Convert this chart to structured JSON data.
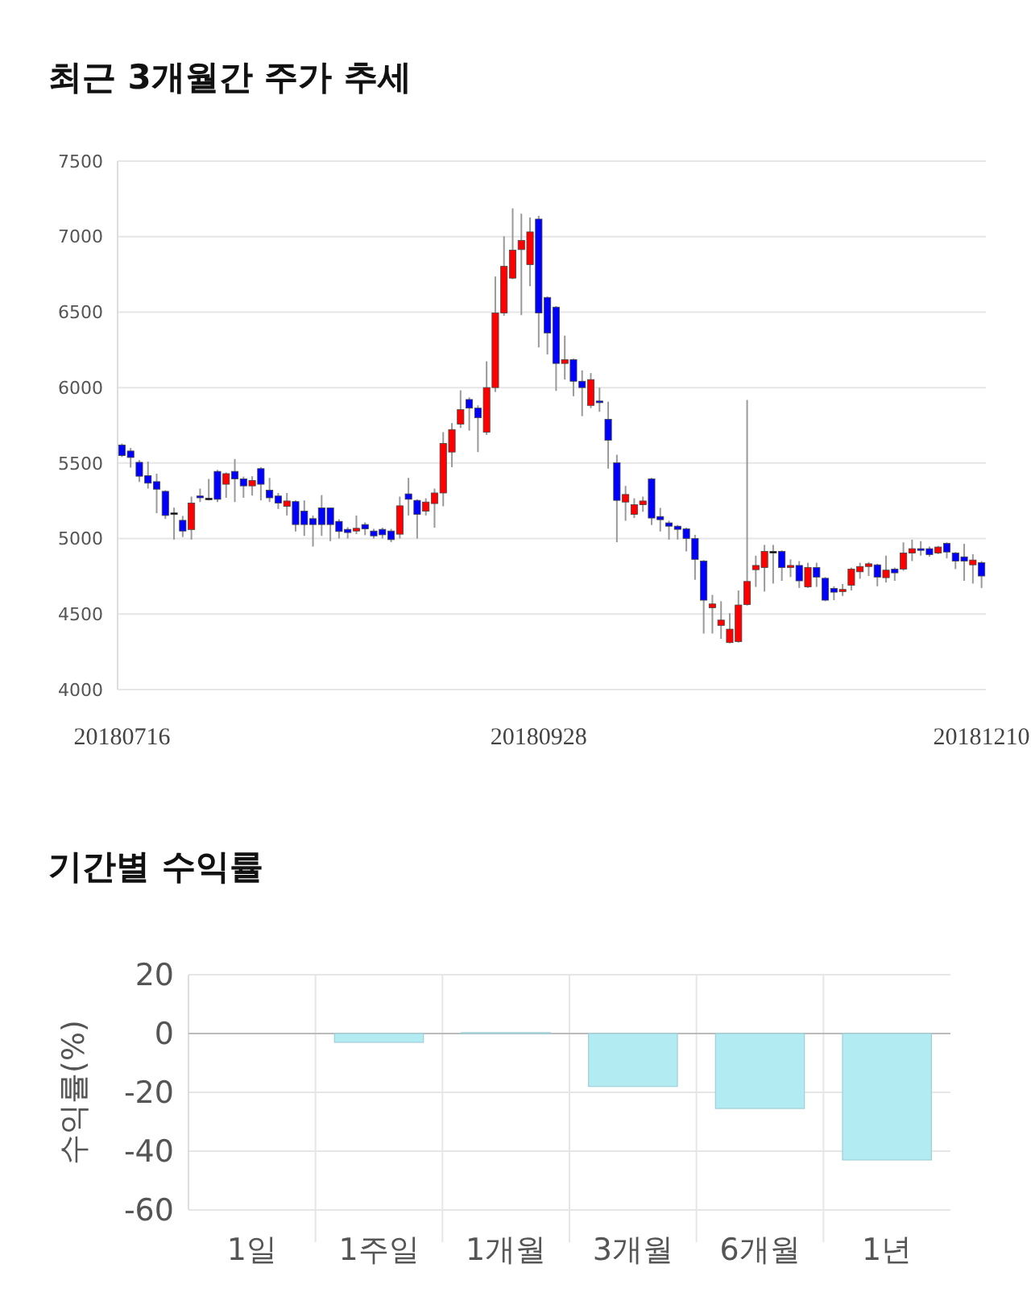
{
  "chart_data": [
    {
      "type": "candlestick",
      "title": "최근 3개월간 주가 추세",
      "categories": [
        "20180716",
        null,
        null,
        null,
        null,
        null,
        null,
        null,
        null,
        null,
        null,
        null,
        null,
        null,
        null,
        null,
        null,
        null,
        null,
        null,
        null,
        null,
        null,
        null,
        null,
        null,
        null,
        null,
        null,
        null,
        null,
        null,
        null,
        null,
        null,
        null,
        null,
        null,
        null,
        null,
        null,
        null,
        null,
        null,
        null,
        null,
        null,
        null,
        "20180928",
        null,
        null,
        null,
        null,
        null,
        null,
        null,
        null,
        null,
        null,
        null,
        null,
        null,
        null,
        null,
        null,
        null,
        null,
        null,
        null,
        null,
        null,
        null,
        null,
        null,
        null,
        null,
        null,
        null,
        null,
        null,
        null,
        null,
        null,
        null,
        null,
        null,
        null,
        null,
        null,
        null,
        null,
        null,
        null,
        null,
        null,
        null,
        null,
        null,
        null,
        "20181210"
      ],
      "ohlc": [
        [
          5620,
          5630,
          5540,
          5550
        ],
        [
          5580,
          5600,
          5470,
          5537
        ],
        [
          5505,
          5520,
          5375,
          5413
        ],
        [
          5417,
          5510,
          5331,
          5367
        ],
        [
          5377,
          5430,
          5168,
          5327
        ],
        [
          5313,
          5320,
          5130,
          5153
        ],
        [
          5170,
          5205,
          4993,
          5170
        ],
        [
          5121,
          5150,
          5010,
          5050
        ],
        [
          5060,
          5278,
          4993,
          5235
        ],
        [
          5282,
          5331,
          5242,
          5270
        ],
        [
          5268,
          5395,
          5252,
          5268
        ],
        [
          5445,
          5455,
          5242,
          5260
        ],
        [
          5360,
          5438,
          5270,
          5430
        ],
        [
          5445,
          5527,
          5242,
          5395
        ],
        [
          5395,
          5410,
          5270,
          5349
        ],
        [
          5349,
          5413,
          5285,
          5385
        ],
        [
          5463,
          5473,
          5253,
          5360
        ],
        [
          5320,
          5402,
          5242,
          5270
        ],
        [
          5282,
          5302,
          5196,
          5235
        ],
        [
          5213,
          5302,
          5153,
          5249
        ],
        [
          5245,
          5253,
          5047,
          5093
        ],
        [
          5182,
          5253,
          5018,
          5093
        ],
        [
          5132,
          5153,
          4947,
          5093
        ],
        [
          5203,
          5288,
          5018,
          5093
        ],
        [
          5203,
          5203,
          4983,
          5093
        ],
        [
          5114,
          5128,
          5000,
          5047
        ],
        [
          5061,
          5075,
          5000,
          5040
        ],
        [
          5050,
          5153,
          5029,
          5068
        ],
        [
          5093,
          5107,
          5022,
          5064
        ],
        [
          5050,
          5064,
          5000,
          5018
        ],
        [
          5061,
          5072,
          5000,
          5025
        ],
        [
          5050,
          5064,
          4976,
          4993
        ],
        [
          5029,
          5278,
          5000,
          5217
        ],
        [
          5296,
          5402,
          5153,
          5260
        ],
        [
          5253,
          5260,
          5000,
          5160
        ],
        [
          5182,
          5267,
          5153,
          5242
        ],
        [
          5232,
          5331,
          5072,
          5302
        ],
        [
          5302,
          5705,
          5214,
          5630
        ],
        [
          5573,
          5765,
          5473,
          5722
        ],
        [
          5758,
          5982,
          5733,
          5854
        ],
        [
          5921,
          5935,
          5715,
          5864
        ],
        [
          5864,
          5882,
          5573,
          5800
        ],
        [
          5705,
          6174,
          5687,
          6000
        ],
        [
          6000,
          6736,
          5971,
          6494
        ],
        [
          6494,
          7002,
          6476,
          6803
        ],
        [
          6725,
          7187,
          6718,
          6910
        ],
        [
          6914,
          7152,
          6480,
          6974
        ],
        [
          6814,
          7127,
          6672,
          7031
        ],
        [
          7116,
          7138,
          6266,
          6494
        ],
        [
          6597,
          6604,
          6220,
          6362
        ],
        [
          6533,
          6540,
          5978,
          6160
        ],
        [
          6160,
          6344,
          6053,
          6185
        ],
        [
          6185,
          6192,
          5943,
          6042
        ],
        [
          6042,
          6114,
          5811,
          6000
        ],
        [
          5882,
          6096,
          5864,
          6053
        ],
        [
          5911,
          6000,
          5840,
          5900
        ],
        [
          5790,
          5907,
          5463,
          5651
        ],
        [
          5502,
          5555,
          4976,
          5253
        ],
        [
          5242,
          5349,
          5118,
          5292
        ],
        [
          5160,
          5267,
          5136,
          5224
        ],
        [
          5224,
          5278,
          5178,
          5249
        ],
        [
          5395,
          5402,
          5090,
          5136
        ],
        [
          5146,
          5203,
          5047,
          5125
        ],
        [
          5104,
          5118,
          4993,
          5082
        ],
        [
          5082,
          5090,
          4993,
          5061
        ],
        [
          5064,
          5072,
          4915,
          5000
        ],
        [
          5000,
          5025,
          4727,
          4862
        ],
        [
          4851,
          4858,
          4371,
          4592
        ],
        [
          4542,
          4627,
          4371,
          4567
        ],
        [
          4425,
          4585,
          4336,
          4460
        ],
        [
          4311,
          4506,
          4307,
          4400
        ],
        [
          4318,
          4656,
          4311,
          4560
        ],
        [
          4563,
          5918,
          4556,
          4716
        ],
        [
          4794,
          4887,
          4680,
          4822
        ],
        [
          4808,
          4958,
          4649,
          4915
        ],
        [
          4915,
          4958,
          4702,
          4915
        ],
        [
          4915,
          4922,
          4720,
          4808
        ],
        [
          4808,
          4862,
          4745,
          4822
        ],
        [
          4822,
          4851,
          4673,
          4720
        ],
        [
          4680,
          4840,
          4673,
          4808
        ],
        [
          4808,
          4840,
          4680,
          4745
        ],
        [
          4737,
          4745,
          4585,
          4592
        ],
        [
          4670,
          4684,
          4592,
          4645
        ],
        [
          4649,
          4699,
          4620,
          4663
        ],
        [
          4691,
          4808,
          4656,
          4798
        ],
        [
          4780,
          4840,
          4734,
          4815
        ],
        [
          4815,
          4844,
          4752,
          4833
        ],
        [
          4826,
          4833,
          4684,
          4745
        ],
        [
          4741,
          4887,
          4709,
          4791
        ],
        [
          4798,
          4808,
          4720,
          4773
        ],
        [
          4798,
          4975,
          4787,
          4904
        ],
        [
          4904,
          4993,
          4851,
          4933
        ],
        [
          4933,
          4983,
          4887,
          4922
        ],
        [
          4933,
          4947,
          4880,
          4894
        ],
        [
          4904,
          4951,
          4897,
          4944
        ],
        [
          4968,
          4975,
          4869,
          4911
        ],
        [
          4904,
          4911,
          4798,
          4851
        ],
        [
          4879,
          4965,
          4720,
          4851
        ],
        [
          4826,
          4897,
          4702,
          4858
        ],
        [
          4840,
          4851,
          4673,
          4752
        ]
      ],
      "colors": [
        "#0000ff",
        "#0000ff",
        "#0000ff",
        "#0000ff",
        "#0000ff",
        "#0000ff",
        "#000000",
        "#0000ff",
        "#ff0000",
        "#0000ff",
        "#000000",
        "#0000ff",
        "#ff0000",
        "#0000ff",
        "#0000ff",
        "#ff0000",
        "#0000ff",
        "#0000ff",
        "#0000ff",
        "#ff0000",
        "#0000ff",
        "#0000ff",
        "#0000ff",
        "#0000ff",
        "#0000ff",
        "#0000ff",
        "#0000ff",
        "#ff0000",
        "#0000ff",
        "#0000ff",
        "#0000ff",
        "#0000ff",
        "#ff0000",
        "#0000ff",
        "#0000ff",
        "#ff0000",
        "#ff0000",
        "#ff0000",
        "#ff0000",
        "#ff0000",
        "#0000ff",
        "#0000ff",
        "#ff0000",
        "#ff0000",
        "#ff0000",
        "#ff0000",
        "#ff0000",
        "#ff0000",
        "#0000ff",
        "#0000ff",
        "#0000ff",
        "#ff0000",
        "#0000ff",
        "#0000ff",
        "#ff0000",
        "#0000ff",
        "#0000ff",
        "#0000ff",
        "#ff0000",
        "#ff0000",
        "#ff0000",
        "#0000ff",
        "#0000ff",
        "#0000ff",
        "#0000ff",
        "#0000ff",
        "#0000ff",
        "#0000ff",
        "#ff0000",
        "#ff0000",
        "#ff0000",
        "#ff0000",
        "#ff0000",
        "#ff0000",
        "#ff0000",
        "#000000",
        "#0000ff",
        "#ff0000",
        "#0000ff",
        "#ff0000",
        "#0000ff",
        "#0000ff",
        "#0000ff",
        "#ff0000",
        "#ff0000",
        "#ff0000",
        "#ff0000",
        "#0000ff",
        "#ff0000",
        "#0000ff",
        "#ff0000",
        "#ff0000",
        "#0000ff",
        "#0000ff",
        "#ff0000",
        "#0000ff",
        "#0000ff",
        "#0000ff",
        "#ff0000",
        "#0000ff"
      ],
      "ylim": [
        4000,
        7500
      ],
      "yticks": [
        4000,
        4500,
        5000,
        5500,
        6000,
        6500,
        7000,
        7500
      ],
      "grid": "y"
    },
    {
      "type": "bar",
      "title": "기간별 수익률",
      "ylabel": "수익률(%)",
      "categories": [
        "1일",
        "1주일",
        "1개월",
        "3개월",
        "6개월",
        "1년"
      ],
      "values": [
        0,
        -3,
        0.3,
        -18,
        -25.5,
        -43
      ],
      "colors": [
        "#b2ebf2",
        "#b2ebf2",
        "#f4c7c7",
        "#b2ebf2",
        "#b2ebf2",
        "#b2ebf2"
      ],
      "ylim": [
        -60,
        20
      ],
      "yticks": [
        20,
        0,
        -20,
        -40,
        -60
      ],
      "grid": true
    }
  ]
}
